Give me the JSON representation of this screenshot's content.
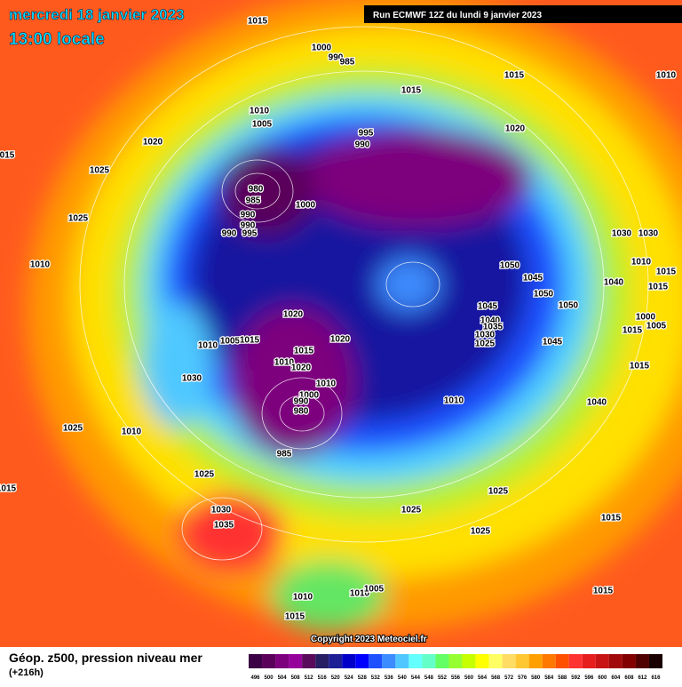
{
  "header": {
    "date": "mercredi 18 janvier 2023",
    "time": "13:00 locale",
    "run": "Run ECMWF 12Z du lundi 9 janvier 2023"
  },
  "isobar_labels": [
    "1015",
    "1000",
    "990",
    "985",
    "1015",
    "1015",
    "1010",
    "1010",
    "1005",
    "1020",
    "995",
    "990",
    "1020",
    "1025",
    "980",
    "985",
    "1000",
    "990",
    "990",
    "990",
    "995",
    "1025",
    "1010",
    "1030",
    "1030",
    "1050",
    "1045",
    "1050",
    "1010",
    "1015",
    "1040",
    "1015",
    "1050",
    "1045",
    "1020",
    "1040",
    "1035",
    "1000",
    "1015",
    "1005",
    "1030",
    "1045",
    "1020",
    "1005",
    "1015",
    "1010",
    "1025",
    "1015",
    "1010",
    "1020",
    "1015",
    "1010",
    "1000",
    "990",
    "980",
    "1030",
    "1010",
    "1040",
    "1025",
    "1010",
    "985",
    "1025",
    "1015",
    "1025",
    "1025",
    "1030",
    "1035",
    "1025",
    "1015",
    "015",
    "1010",
    "1010",
    "1005",
    "1015",
    "1015"
  ],
  "footer": {
    "title": "Géop. z500, pression niveau mer",
    "lead": "(+216h)",
    "copyright": "Copyright 2023 Meteociel.fr"
  },
  "color_scale": {
    "labels": [
      "496",
      "500",
      "504",
      "508",
      "512",
      "516",
      "520",
      "524",
      "528",
      "532",
      "536",
      "540",
      "544",
      "548",
      "552",
      "556",
      "560",
      "564",
      "568",
      "572",
      "576",
      "580",
      "584",
      "588",
      "592",
      "596",
      "600",
      "604",
      "608",
      "612",
      "616"
    ],
    "colors": [
      "#3c0046",
      "#5a005a",
      "#7d007d",
      "#96009b",
      "#5a0a5a",
      "#281e64",
      "#1e1e96",
      "#0000c8",
      "#0000ff",
      "#1e50ff",
      "#3c8cff",
      "#50c8ff",
      "#64ffff",
      "#64ffc8",
      "#64ff64",
      "#96ff32",
      "#c8ff00",
      "#ffff00",
      "#ffff64",
      "#ffdc64",
      "#ffc832",
      "#ffa000",
      "#ff7800",
      "#ff5000",
      "#ff3232",
      "#e61e1e",
      "#c81414",
      "#a00a0a",
      "#820000",
      "#500000",
      "#1a0000"
    ]
  }
}
